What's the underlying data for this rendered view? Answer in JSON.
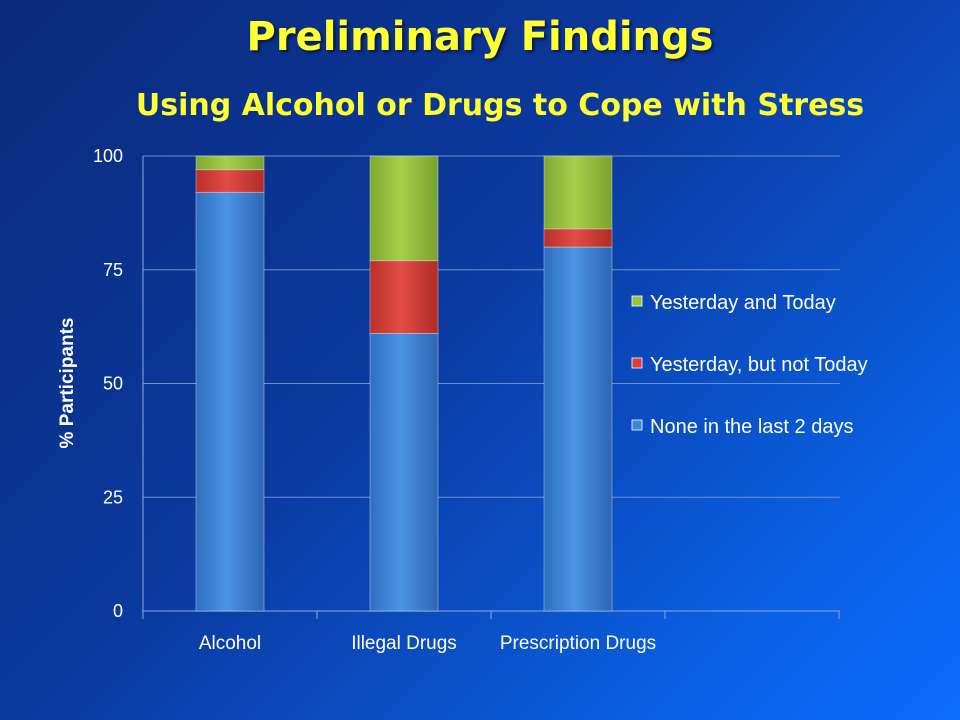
{
  "title": "Preliminary Findings",
  "chart_data": {
    "type": "bar",
    "stacked": true,
    "title": "Using Alcohol or Drugs to Cope with Stress",
    "xlabel": "",
    "ylabel": "% Participants",
    "ylim": [
      0,
      100
    ],
    "yticks": [
      "0",
      "25",
      "50",
      "75",
      "100"
    ],
    "categories": [
      "Alcohol",
      "Illegal Drugs",
      "Prescription Drugs"
    ],
    "series": [
      {
        "name": "None in the last 2 days",
        "color": "#3f85d6",
        "values": [
          92,
          61,
          80
        ]
      },
      {
        "name": "Yesterday, but not Today",
        "color": "#d9403a",
        "values": [
          5,
          16,
          4
        ]
      },
      {
        "name": "Yesterday and Today",
        "color": "#96c23e",
        "values": [
          3,
          23,
          16
        ]
      }
    ],
    "legend_position": "right",
    "grid": true
  }
}
